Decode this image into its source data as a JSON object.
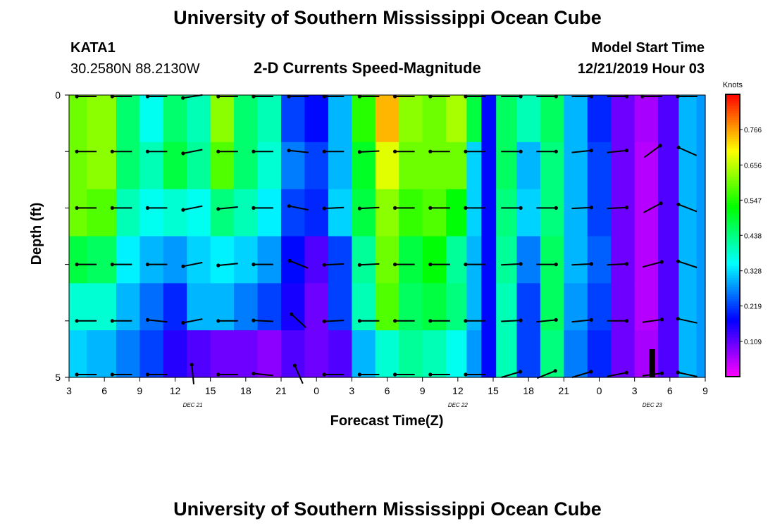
{
  "header": {
    "title": "University of Southern Mississippi Ocean Cube",
    "station_id": "KATA1",
    "station_coords": "30.2580N 88.2130W",
    "chart_title": "2-D Currents Speed-Magnitude",
    "model_start_label": "Model Start Time",
    "model_start_value": "12/21/2019 Hour 03"
  },
  "footer": {
    "title": "University of Southern Mississippi Ocean Cube"
  },
  "chart_data": {
    "type": "heatmap",
    "title": "2-D Currents Speed-Magnitude",
    "xlabel": "Forecast Time(Z)",
    "ylabel": "Depth (ft)",
    "xlim": [
      3,
      57
    ],
    "ylim": [
      0,
      5
    ],
    "x_ticks": [
      3,
      6,
      9,
      12,
      15,
      18,
      21,
      24,
      27,
      30,
      33,
      36,
      39,
      42,
      45,
      48,
      51,
      54,
      57
    ],
    "x_tick_labels": [
      "3",
      "6",
      "9",
      "12",
      "15",
      "18",
      "21",
      "0",
      "3",
      "6",
      "9",
      "12",
      "15",
      "18",
      "21",
      "0",
      "3",
      "6",
      "9"
    ],
    "y_ticks": [
      0,
      5
    ],
    "y_tick_labels": [
      "0",
      "5"
    ],
    "date_labels": [
      {
        "x": 13.5,
        "text": "DEC 21"
      },
      {
        "x": 36,
        "text": "DEC 22"
      },
      {
        "x": 52.5,
        "text": "DEC 23"
      }
    ],
    "colorbar": {
      "title": "Knots",
      "ticks": [
        0.766,
        0.656,
        0.547,
        0.438,
        0.328,
        0.219,
        0.109
      ],
      "tick_labels": [
        "0.766",
        "0.656",
        "0.547",
        "0.438",
        "0.328",
        "0.219",
        "0.109"
      ],
      "min": 0.0,
      "max": 0.875
    },
    "speed_columns": [
      {
        "t": 3,
        "v": [
          0.6,
          0.6,
          0.6,
          0.48,
          0.38,
          0.32
        ]
      },
      {
        "t": 6,
        "v": [
          0.62,
          0.62,
          0.58,
          0.46,
          0.38,
          0.3
        ]
      },
      {
        "t": 8,
        "v": [
          0.45,
          0.45,
          0.4,
          0.34,
          0.3,
          0.26
        ]
      },
      {
        "t": 10,
        "v": [
          0.36,
          0.4,
          0.36,
          0.3,
          0.25,
          0.22
        ]
      },
      {
        "t": 12,
        "v": [
          0.45,
          0.48,
          0.38,
          0.28,
          0.2,
          0.15
        ]
      },
      {
        "t": 14,
        "v": [
          0.4,
          0.42,
          0.36,
          0.32,
          0.3,
          0.12
        ]
      },
      {
        "t": 16,
        "v": [
          0.62,
          0.58,
          0.44,
          0.34,
          0.3,
          0.1
        ]
      },
      {
        "t": 18,
        "v": [
          0.45,
          0.45,
          0.4,
          0.32,
          0.26,
          0.1
        ]
      },
      {
        "t": 20,
        "v": [
          0.4,
          0.38,
          0.34,
          0.28,
          0.22,
          0.08
        ]
      },
      {
        "t": 22,
        "v": [
          0.22,
          0.26,
          0.22,
          0.18,
          0.16,
          0.12
        ]
      },
      {
        "t": 24,
        "v": [
          0.18,
          0.22,
          0.2,
          0.12,
          0.1,
          0.1
        ]
      },
      {
        "t": 26,
        "v": [
          0.3,
          0.3,
          0.32,
          0.22,
          0.22,
          0.12
        ]
      },
      {
        "t": 28,
        "v": [
          0.55,
          0.5,
          0.48,
          0.42,
          0.4,
          0.3
        ]
      },
      {
        "t": 30,
        "v": [
          0.75,
          0.68,
          0.62,
          0.6,
          0.58,
          0.38
        ]
      },
      {
        "t": 32,
        "v": [
          0.62,
          0.6,
          0.56,
          0.48,
          0.46,
          0.42
        ]
      },
      {
        "t": 34,
        "v": [
          0.6,
          0.6,
          0.58,
          0.52,
          0.48,
          0.4
        ]
      },
      {
        "t": 36,
        "v": [
          0.64,
          0.6,
          0.52,
          0.42,
          0.44,
          0.36
        ]
      },
      {
        "t": 37.5,
        "v": [
          0.48,
          0.32,
          0.32,
          0.3,
          0.3,
          0.28
        ]
      },
      {
        "t": 38.5,
        "v": [
          0.18,
          0.18,
          0.18,
          0.18,
          0.18,
          0.18
        ]
      },
      {
        "t": 40,
        "v": [
          0.46,
          0.46,
          0.44,
          0.42,
          0.4,
          0.4
        ]
      },
      {
        "t": 42,
        "v": [
          0.4,
          0.3,
          0.32,
          0.26,
          0.22,
          0.22
        ]
      },
      {
        "t": 44,
        "v": [
          0.46,
          0.44,
          0.44,
          0.46,
          0.46,
          0.44
        ]
      },
      {
        "t": 46,
        "v": [
          0.3,
          0.3,
          0.3,
          0.3,
          0.28,
          0.26
        ]
      },
      {
        "t": 48,
        "v": [
          0.2,
          0.22,
          0.22,
          0.24,
          0.22,
          0.2
        ]
      },
      {
        "t": 50,
        "v": [
          0.1,
          0.1,
          0.1,
          0.1,
          0.1,
          0.1
        ]
      },
      {
        "t": 52,
        "v": [
          0.06,
          0.05,
          0.05,
          0.05,
          0.05,
          0.06
        ]
      },
      {
        "t": 54,
        "v": [
          0.12,
          0.12,
          0.12,
          0.12,
          0.12,
          0.12
        ]
      },
      {
        "t": 55.5,
        "v": [
          0.3,
          0.3,
          0.3,
          0.3,
          0.3,
          0.3
        ]
      },
      {
        "t": 57,
        "v": [
          0.28,
          0.28,
          0.28,
          0.28,
          0.28,
          0.28
        ]
      }
    ],
    "vector_times": [
      4.5,
      7.5,
      10.5,
      13.5,
      16.5,
      19.5,
      22.5,
      25.5,
      28.5,
      31.5,
      34.5,
      37.5,
      40.5,
      43.5,
      46.5,
      49.5,
      52.5,
      55.5
    ],
    "vectors": [
      [
        [
          -1,
          0
        ],
        [
          -1,
          0
        ],
        [
          -1,
          0
        ],
        [
          -1,
          -0.15
        ],
        [
          -1,
          0
        ],
        [
          -1,
          0
        ],
        [
          -1,
          0
        ],
        [
          -1,
          0
        ],
        [
          -1,
          0
        ],
        [
          -1,
          0
        ],
        [
          -1,
          0
        ],
        [
          -1,
          0
        ],
        [
          1,
          0
        ],
        [
          1,
          0
        ],
        [
          1,
          0
        ],
        [
          1,
          0
        ],
        [
          -1,
          0
        ],
        [
          -1,
          0
        ]
      ],
      [
        [
          -1,
          0
        ],
        [
          -1,
          0
        ],
        [
          -1,
          0
        ],
        [
          -1,
          -0.2
        ],
        [
          -1,
          0
        ],
        [
          -1,
          0
        ],
        [
          -1,
          0.1
        ],
        [
          -1,
          0
        ],
        [
          -1,
          -0.05
        ],
        [
          -1,
          0
        ],
        [
          -1,
          0
        ],
        [
          -1,
          0
        ],
        [
          1,
          0
        ],
        [
          1,
          0
        ],
        [
          1,
          0.1
        ],
        [
          1,
          0.1
        ],
        [
          0.75,
          0.55
        ],
        [
          -0.9,
          0.4
        ]
      ],
      [
        [
          -1,
          0
        ],
        [
          -1,
          0
        ],
        [
          -1,
          0
        ],
        [
          -1,
          -0.2
        ],
        [
          -1,
          -0.1
        ],
        [
          -1,
          0
        ],
        [
          -1,
          0.2
        ],
        [
          -1,
          -0.05
        ],
        [
          -1,
          -0.05
        ],
        [
          -1,
          0
        ],
        [
          -1,
          0
        ],
        [
          -1,
          0
        ],
        [
          1,
          0
        ],
        [
          1,
          0
        ],
        [
          1,
          0.05
        ],
        [
          1,
          0.05
        ],
        [
          0.75,
          0.4
        ],
        [
          -0.9,
          0.35
        ]
      ],
      [
        [
          -1,
          0
        ],
        [
          -1,
          0
        ],
        [
          -1,
          0
        ],
        [
          -1,
          -0.2
        ],
        [
          -1,
          -0.1
        ],
        [
          -1,
          0
        ],
        [
          -1,
          0.4
        ],
        [
          -1,
          -0.05
        ],
        [
          -1,
          -0.05
        ],
        [
          -1,
          0
        ],
        [
          -1,
          0
        ],
        [
          -1,
          0
        ],
        [
          1,
          0.05
        ],
        [
          1,
          0
        ],
        [
          1,
          0.05
        ],
        [
          1,
          0.05
        ],
        [
          0.75,
          0.2
        ],
        [
          -0.9,
          0.3
        ]
      ],
      [
        [
          -1,
          0
        ],
        [
          -1,
          0
        ],
        [
          -1,
          0.1
        ],
        [
          -1,
          -0.2
        ],
        [
          -1,
          0
        ],
        [
          -1,
          0.05
        ],
        [
          -0.7,
          0.65
        ],
        [
          -1,
          -0.05
        ],
        [
          -1,
          0
        ],
        [
          -1,
          0
        ],
        [
          -1,
          0
        ],
        [
          -1,
          0
        ],
        [
          1,
          0.05
        ],
        [
          1,
          0.1
        ],
        [
          1,
          0.1
        ],
        [
          1,
          0
        ],
        [
          0.75,
          0.1
        ],
        [
          -0.9,
          0.2
        ]
      ],
      [
        [
          -1,
          0
        ],
        [
          -1,
          0
        ],
        [
          -1,
          0
        ],
        [
          -0.1,
          1
        ],
        [
          -1,
          0
        ],
        [
          -1,
          0.1
        ],
        [
          -0.4,
          0.9
        ],
        [
          -1,
          0
        ],
        [
          -1,
          0
        ],
        [
          -1,
          0
        ],
        [
          -1,
          0
        ],
        [
          -1,
          0
        ],
        [
          1,
          0.3
        ],
        [
          1,
          0.4
        ],
        [
          1,
          0.3
        ],
        [
          1,
          0.2
        ],
        [
          0.75,
          0.1
        ],
        [
          -0.9,
          0.2
        ]
      ]
    ]
  }
}
